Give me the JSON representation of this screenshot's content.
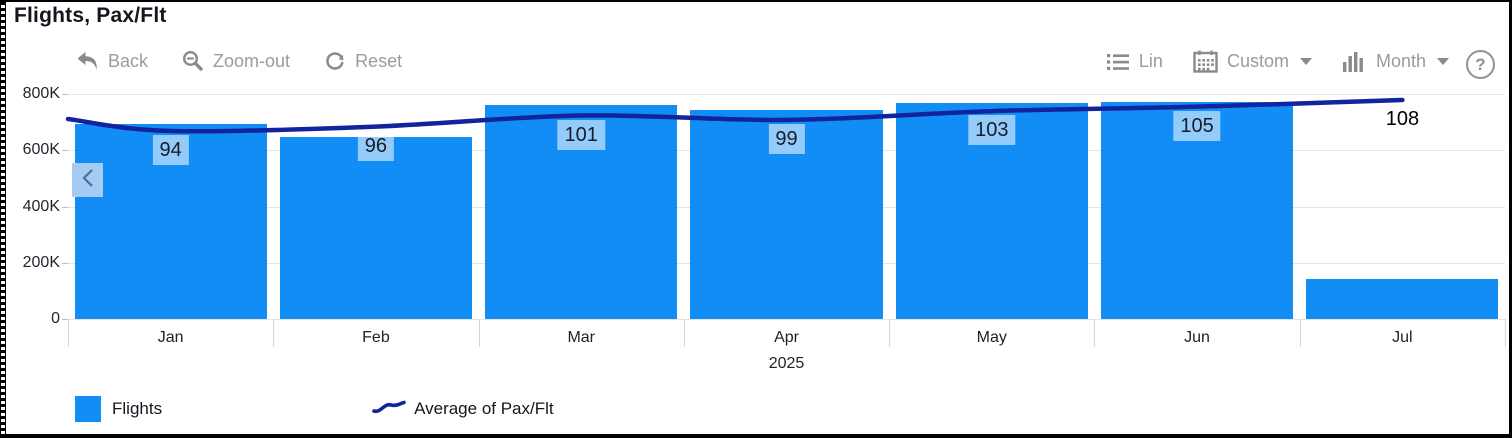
{
  "title": "Flights, Pax/Flt",
  "toolbar": {
    "left": [
      {
        "label": "Back",
        "icon": "undo-arrow-icon"
      },
      {
        "label": "Zoom-out",
        "icon": "magnifier-minus-icon"
      },
      {
        "label": "Reset",
        "icon": "refresh-icon"
      }
    ],
    "right": [
      {
        "label": "Lin",
        "icon": "list-icon",
        "has_caret": false
      },
      {
        "label": "Custom",
        "icon": "calendar-icon",
        "has_caret": true
      },
      {
        "label": "Month",
        "icon": "column-chart-icon",
        "has_caret": true
      }
    ],
    "help": {
      "label": "?",
      "icon": "question-circle-icon"
    }
  },
  "scroll_button": {
    "icon": "chevron-left-icon",
    "glyph": "‹"
  },
  "chart_data": {
    "type": "combo-bar-line",
    "categories": [
      "Jan",
      "Feb",
      "Mar",
      "Apr",
      "May",
      "Jun",
      "Jul"
    ],
    "x_axis_year": "2025",
    "series": [
      {
        "name": "Flights",
        "type": "bar",
        "color": "#118df5",
        "values": [
          695000,
          647000,
          760000,
          743000,
          768000,
          771000,
          142000
        ]
      },
      {
        "name": "Average of Pax/Flt",
        "type": "line",
        "color": "#12239e",
        "values": [
          94,
          96,
          101,
          99,
          103,
          105,
          108
        ],
        "data_labels": [
          "94",
          "96",
          "101",
          "99",
          "103",
          "105",
          "108"
        ]
      }
    ],
    "y_axis": {
      "tick_labels": [
        "800K",
        "600K",
        "400K",
        "200K",
        "0"
      ],
      "max": 800000,
      "min": 0
    },
    "grid": true,
    "legend_position": "bottom"
  },
  "legend": [
    {
      "label": "Flights",
      "swatch": "blue-square"
    },
    {
      "label": "Average of Pax/Flt",
      "swatch": "navy-line"
    }
  ],
  "colors": {
    "bar": "#118df5",
    "line": "#12239e",
    "grid": "#e4e4e4",
    "toolbar_text": "#9b9b9b"
  }
}
